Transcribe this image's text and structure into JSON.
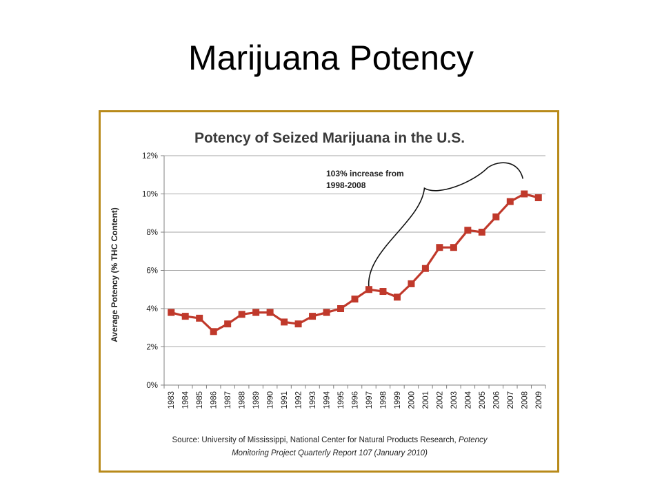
{
  "slide": {
    "title": "Marijuana Potency"
  },
  "chart_data": {
    "type": "line",
    "title": "Potency of Seized Marijuana in the U.S.",
    "ylabel": "Average Potency (% THC Content)",
    "xlabel": "",
    "ylim": [
      0,
      12
    ],
    "y_ticks": [
      "0%",
      "2%",
      "4%",
      "6%",
      "8%",
      "10%",
      "12%"
    ],
    "grid": "horizontal",
    "categories": [
      "1983",
      "1984",
      "1985",
      "1986",
      "1987",
      "1988",
      "1989",
      "1990",
      "1991",
      "1992",
      "1993",
      "1994",
      "1995",
      "1996",
      "1997",
      "1998",
      "1999",
      "2000",
      "2001",
      "2002",
      "2003",
      "2004",
      "2005",
      "2006",
      "2007",
      "2008",
      "2009"
    ],
    "series": [
      {
        "color": "#c0392b",
        "marker": "square",
        "values": [
          3.8,
          3.6,
          3.5,
          2.8,
          3.2,
          3.7,
          3.8,
          3.8,
          3.3,
          3.2,
          3.6,
          3.8,
          4.0,
          4.5,
          5.0,
          4.9,
          4.6,
          5.3,
          6.1,
          7.2,
          7.2,
          8.1,
          8.0,
          8.8,
          9.6,
          10.0,
          9.8
        ]
      }
    ],
    "annotation": {
      "line1": "103% increase from",
      "line2": "1998-2008"
    },
    "source": {
      "line1_plain": "Source: University of Mississippi, National Center for Natural Products Research, ",
      "line1_italic": "Potency",
      "line2_italic": "Monitoring Project Quarterly Report 107 (January 2010)"
    }
  }
}
